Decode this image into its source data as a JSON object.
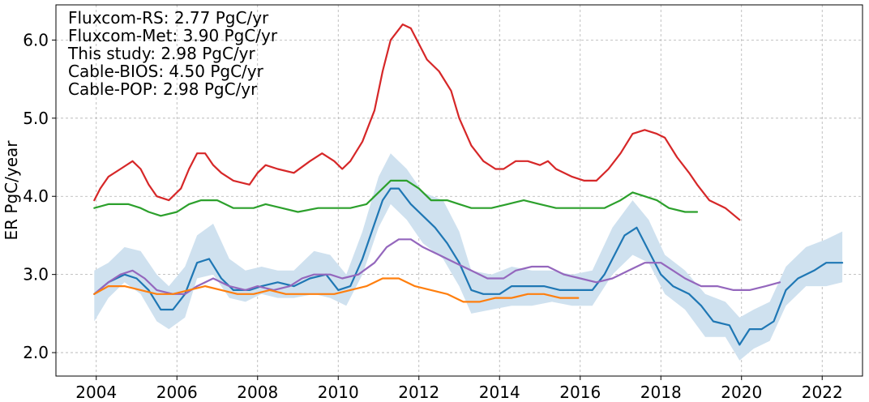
{
  "chart_data": {
    "type": "line",
    "title": "",
    "xlabel": "",
    "ylabel": "ER PgC/year",
    "xlim": [
      2003.0,
      2023.0
    ],
    "ylim": [
      1.7,
      6.45
    ],
    "xticks": [
      2004,
      2006,
      2008,
      2010,
      2012,
      2014,
      2016,
      2018,
      2020,
      2022
    ],
    "yticks": [
      2.0,
      3.0,
      4.0,
      5.0,
      6.0
    ],
    "ytick_labels": [
      "2.0",
      "3.0",
      "4.0",
      "5.0",
      "6.0"
    ],
    "grid": true,
    "annotations": [
      "Fluxcom-RS: 2.77 PgC/yr",
      "Fluxcom-Met: 3.90 PgC/yr",
      "This study: 2.98 PgC/yr",
      "Cable-BIOS: 4.50 PgC/yr",
      "Cable-POP: 2.98 PgC/yr"
    ],
    "uncertainty_band": {
      "color": "#cfe1ef",
      "points": [
        [
          2003.95,
          2.4,
          3.05
        ],
        [
          2004.3,
          2.7,
          3.15
        ],
        [
          2004.7,
          2.9,
          3.35
        ],
        [
          2005.1,
          2.75,
          3.3
        ],
        [
          2005.5,
          2.4,
          3.0
        ],
        [
          2005.8,
          2.3,
          2.85
        ],
        [
          2006.2,
          2.45,
          3.1
        ],
        [
          2006.5,
          2.95,
          3.5
        ],
        [
          2006.9,
          3.0,
          3.65
        ],
        [
          2007.3,
          2.7,
          3.2
        ],
        [
          2007.7,
          2.65,
          3.05
        ],
        [
          2008.1,
          2.75,
          3.1
        ],
        [
          2008.5,
          2.7,
          3.05
        ],
        [
          2008.9,
          2.7,
          3.05
        ],
        [
          2009.4,
          2.75,
          3.3
        ],
        [
          2009.8,
          2.7,
          3.25
        ],
        [
          2010.2,
          2.6,
          3.0
        ],
        [
          2010.6,
          3.0,
          3.55
        ],
        [
          2011.0,
          3.6,
          4.25
        ],
        [
          2011.3,
          3.9,
          4.55
        ],
        [
          2011.7,
          3.7,
          4.35
        ],
        [
          2012.1,
          3.4,
          4.05
        ],
        [
          2012.6,
          3.2,
          3.95
        ],
        [
          2013.0,
          2.85,
          3.55
        ],
        [
          2013.3,
          2.5,
          3.05
        ],
        [
          2013.8,
          2.55,
          3.0
        ],
        [
          2014.3,
          2.6,
          3.1
        ],
        [
          2014.8,
          2.6,
          3.05
        ],
        [
          2015.3,
          2.65,
          3.05
        ],
        [
          2015.8,
          2.6,
          3.0
        ],
        [
          2016.3,
          2.6,
          3.05
        ],
        [
          2016.8,
          3.0,
          3.6
        ],
        [
          2017.3,
          3.25,
          3.95
        ],
        [
          2017.7,
          3.15,
          3.7
        ],
        [
          2018.1,
          2.75,
          3.25
        ],
        [
          2018.6,
          2.55,
          3.05
        ],
        [
          2019.1,
          2.2,
          2.75
        ],
        [
          2019.6,
          2.2,
          2.65
        ],
        [
          2019.95,
          1.9,
          2.45
        ],
        [
          2020.3,
          2.05,
          2.55
        ],
        [
          2020.7,
          2.15,
          2.65
        ],
        [
          2021.1,
          2.6,
          3.1
        ],
        [
          2021.6,
          2.85,
          3.35
        ],
        [
          2022.1,
          2.85,
          3.45
        ],
        [
          2022.5,
          2.9,
          3.55
        ]
      ]
    },
    "series": [
      {
        "color": "#d62728",
        "x": [
          2003.95,
          2004.1,
          2004.3,
          2004.6,
          2004.9,
          2005.1,
          2005.3,
          2005.5,
          2005.8,
          2006.1,
          2006.3,
          2006.5,
          2006.7,
          2006.9,
          2007.1,
          2007.4,
          2007.8,
          2008.0,
          2008.2,
          2008.5,
          2008.9,
          2009.3,
          2009.6,
          2009.9,
          2010.1,
          2010.3,
          2010.6,
          2010.9,
          2011.1,
          2011.3,
          2011.6,
          2011.8,
          2012.0,
          2012.2,
          2012.5,
          2012.8,
          2013.0,
          2013.3,
          2013.6,
          2013.9,
          2014.1,
          2014.4,
          2014.7,
          2015.0,
          2015.2,
          2015.4,
          2015.8,
          2016.1,
          2016.4,
          2016.7,
          2017.0,
          2017.3,
          2017.6,
          2017.9,
          2018.1,
          2018.4,
          2018.7,
          2018.9,
          2019.2,
          2019.6,
          2019.95
        ],
        "values": [
          3.95,
          4.1,
          4.25,
          4.35,
          4.45,
          4.35,
          4.15,
          4.0,
          3.95,
          4.1,
          4.35,
          4.55,
          4.55,
          4.4,
          4.3,
          4.2,
          4.15,
          4.3,
          4.4,
          4.35,
          4.3,
          4.45,
          4.55,
          4.45,
          4.35,
          4.45,
          4.7,
          5.1,
          5.6,
          6.0,
          6.2,
          6.15,
          5.95,
          5.75,
          5.6,
          5.35,
          5.0,
          4.65,
          4.45,
          4.35,
          4.35,
          4.45,
          4.45,
          4.4,
          4.45,
          4.35,
          4.25,
          4.2,
          4.2,
          4.35,
          4.55,
          4.8,
          4.85,
          4.8,
          4.75,
          4.5,
          4.3,
          4.15,
          3.95,
          3.85,
          3.7
        ]
      },
      {
        "color": "#2ca02c",
        "x": [
          2003.95,
          2004.3,
          2004.8,
          2005.1,
          2005.3,
          2005.6,
          2006.0,
          2006.3,
          2006.6,
          2007.0,
          2007.4,
          2007.9,
          2008.2,
          2008.6,
          2009.0,
          2009.5,
          2009.9,
          2010.3,
          2010.7,
          2011.0,
          2011.3,
          2011.7,
          2012.0,
          2012.3,
          2012.7,
          2013.0,
          2013.3,
          2013.8,
          2014.2,
          2014.6,
          2015.0,
          2015.4,
          2015.8,
          2016.2,
          2016.6,
          2017.0,
          2017.3,
          2017.6,
          2017.9,
          2018.2,
          2018.6,
          2018.9
        ],
        "values": [
          3.85,
          3.9,
          3.9,
          3.85,
          3.8,
          3.75,
          3.8,
          3.9,
          3.95,
          3.95,
          3.85,
          3.85,
          3.9,
          3.85,
          3.8,
          3.85,
          3.85,
          3.85,
          3.9,
          4.05,
          4.2,
          4.2,
          4.1,
          3.95,
          3.95,
          3.9,
          3.85,
          3.85,
          3.9,
          3.95,
          3.9,
          3.85,
          3.85,
          3.85,
          3.85,
          3.95,
          4.05,
          4.0,
          3.95,
          3.85,
          3.8,
          3.8
        ]
      },
      {
        "color": "#1f77b4",
        "x": [
          2003.95,
          2004.3,
          2004.7,
          2005.0,
          2005.3,
          2005.6,
          2005.9,
          2006.2,
          2006.5,
          2006.8,
          2007.1,
          2007.4,
          2007.8,
          2008.1,
          2008.5,
          2008.9,
          2009.3,
          2009.7,
          2010.0,
          2010.3,
          2010.6,
          2010.9,
          2011.1,
          2011.3,
          2011.5,
          2011.8,
          2012.1,
          2012.4,
          2012.7,
          2013.0,
          2013.3,
          2013.6,
          2014.0,
          2014.3,
          2014.7,
          2015.1,
          2015.5,
          2015.9,
          2016.3,
          2016.6,
          2016.9,
          2017.1,
          2017.4,
          2017.7,
          2018.0,
          2018.3,
          2018.7,
          2019.0,
          2019.3,
          2019.7,
          2019.95,
          2020.2,
          2020.5,
          2020.8,
          2021.1,
          2021.4,
          2021.8,
          2022.1,
          2022.5
        ],
        "values": [
          2.75,
          2.9,
          3.0,
          2.95,
          2.8,
          2.55,
          2.55,
          2.75,
          3.15,
          3.2,
          2.95,
          2.8,
          2.8,
          2.85,
          2.9,
          2.85,
          2.95,
          3.0,
          2.8,
          2.85,
          3.2,
          3.65,
          3.95,
          4.1,
          4.1,
          3.9,
          3.75,
          3.6,
          3.4,
          3.15,
          2.8,
          2.75,
          2.75,
          2.85,
          2.85,
          2.85,
          2.8,
          2.8,
          2.8,
          3.0,
          3.3,
          3.5,
          3.6,
          3.3,
          3.0,
          2.85,
          2.75,
          2.6,
          2.4,
          2.35,
          2.1,
          2.3,
          2.3,
          2.4,
          2.8,
          2.95,
          3.05,
          3.15,
          3.15
        ]
      },
      {
        "color": "#9467bd",
        "x": [
          2003.95,
          2004.3,
          2004.6,
          2004.9,
          2005.2,
          2005.5,
          2005.9,
          2006.2,
          2006.5,
          2006.9,
          2007.3,
          2007.7,
          2008.0,
          2008.4,
          2008.8,
          2009.1,
          2009.4,
          2009.8,
          2010.1,
          2010.5,
          2010.9,
          2011.2,
          2011.5,
          2011.8,
          2012.1,
          2012.5,
          2012.9,
          2013.3,
          2013.7,
          2014.1,
          2014.4,
          2014.8,
          2015.2,
          2015.6,
          2016.0,
          2016.4,
          2016.8,
          2017.2,
          2017.6,
          2018.0,
          2018.3,
          2018.6,
          2019.0,
          2019.4,
          2019.8,
          2020.2,
          2020.6,
          2020.95
        ],
        "values": [
          2.75,
          2.9,
          3.0,
          3.05,
          2.95,
          2.8,
          2.75,
          2.75,
          2.85,
          2.95,
          2.85,
          2.8,
          2.85,
          2.8,
          2.85,
          2.95,
          3.0,
          3.0,
          2.95,
          3.0,
          3.15,
          3.35,
          3.45,
          3.45,
          3.35,
          3.25,
          3.15,
          3.05,
          2.95,
          2.95,
          3.05,
          3.1,
          3.1,
          3.0,
          2.95,
          2.9,
          2.95,
          3.05,
          3.15,
          3.15,
          3.05,
          2.95,
          2.85,
          2.85,
          2.8,
          2.8,
          2.85,
          2.9
        ]
      },
      {
        "color": "#ff7f0e",
        "x": [
          2003.95,
          2004.3,
          2004.7,
          2005.1,
          2005.5,
          2005.9,
          2006.3,
          2006.7,
          2007.1,
          2007.5,
          2007.9,
          2008.3,
          2008.7,
          2009.1,
          2009.5,
          2009.9,
          2010.3,
          2010.7,
          2011.1,
          2011.5,
          2011.9,
          2012.3,
          2012.7,
          2013.1,
          2013.5,
          2013.9,
          2014.3,
          2014.7,
          2015.1,
          2015.5,
          2015.95
        ],
        "values": [
          2.75,
          2.85,
          2.85,
          2.8,
          2.75,
          2.75,
          2.8,
          2.85,
          2.8,
          2.75,
          2.75,
          2.8,
          2.75,
          2.75,
          2.75,
          2.75,
          2.8,
          2.85,
          2.95,
          2.95,
          2.85,
          2.8,
          2.75,
          2.65,
          2.65,
          2.7,
          2.7,
          2.75,
          2.75,
          2.7,
          2.7
        ]
      }
    ]
  }
}
